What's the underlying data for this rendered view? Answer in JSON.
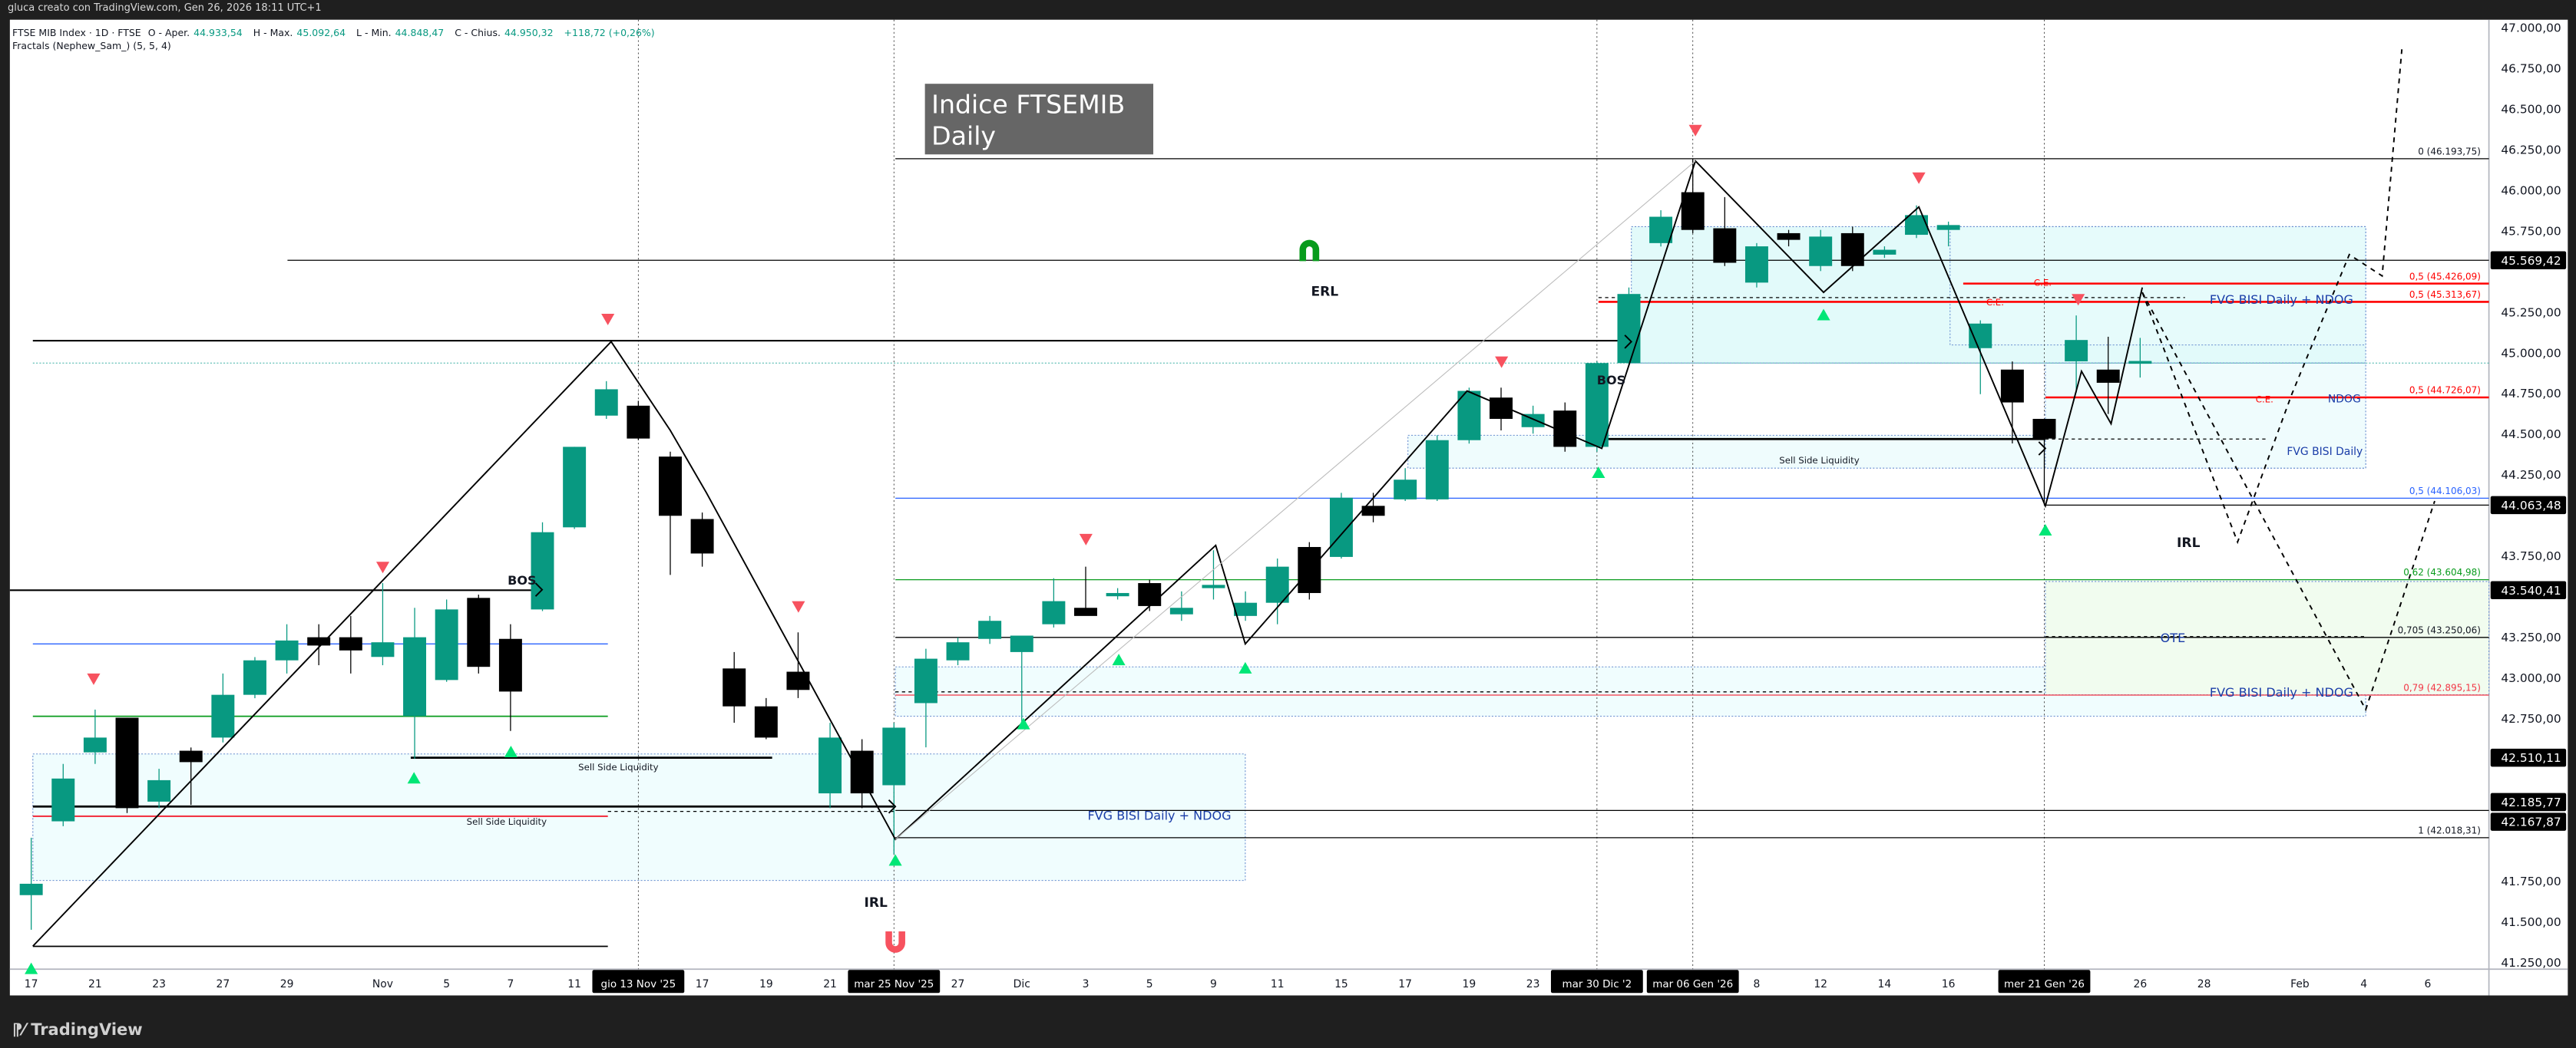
{
  "credit": "gluca creato con TradingView.com, Gen 26, 2026 18:11 UTC+1",
  "legend": {
    "symbol": "FTSE MIB Index · 1D · FTSE",
    "open_label": "O - Aper.",
    "open": "44.933,54",
    "high_label": "H - Max.",
    "high": "45.092,64",
    "low_label": "L - Min.",
    "low": "44.848,47",
    "close_label": "C - Chius.",
    "close": "44.950,32",
    "change": "+118,72 (+0,26%)",
    "indicator": "Fractals (Nephew_Sam_) (5, 5, 4)"
  },
  "title_box": {
    "line1": "Indice FTSEMIB",
    "line2": "Daily"
  },
  "annotations": {
    "erl": "ERL",
    "irl": "IRL",
    "bos": "BOS",
    "sell_side_liquidity": "Sell Side Liquidity",
    "fvg_bisi_ndog": "FVG BISI Daily + NDOG",
    "fvg_bisi": "FVG BISI Daily",
    "ndog": "NDOG",
    "ce": "C.E.",
    "ote": "OTE"
  },
  "fib_levels": [
    {
      "label": "0 (46.193,75)",
      "value": 46193.75
    },
    {
      "label": "0,5 (45.426,09)",
      "value": 45426.09
    },
    {
      "label": "0,5 (45.313,67)",
      "value": 45313.67
    },
    {
      "label": "0,5 (44.726,07)",
      "value": 44726.07
    },
    {
      "label": "0,5 (44.106,03)",
      "value": 44106.03
    },
    {
      "label": "0,62 (43.604,98)",
      "value": 43604.98
    },
    {
      "label": "0,705 (43.250,06)",
      "value": 43250.06
    },
    {
      "label": "0,79 (42.895,15)",
      "value": 42895.15
    },
    {
      "label": "1 (42.018,31)",
      "value": 42018.31
    }
  ],
  "price_markers": [
    {
      "label": "45.569,42",
      "value": 45569.42
    },
    {
      "label": "44.063,48",
      "value": 44063.48
    },
    {
      "label": "43.540,41",
      "value": 43540.41
    },
    {
      "label": "42.510,11",
      "value": 42510.11
    },
    {
      "label": "42.185,77",
      "value": 42185.77
    },
    {
      "label": "42.167,87",
      "value": 42167.87
    }
  ],
  "time_markers": [
    {
      "label": "gio 13 Nov '25",
      "bar": 19
    },
    {
      "label": "mar 25 Nov '25",
      "bar": 27
    },
    {
      "label": "mar 30 Dic '2",
      "bar": 49
    },
    {
      "label": "mar 06 Gen '26",
      "bar": 52
    },
    {
      "label": "mer 21 Gen '26",
      "bar": 63
    }
  ],
  "colors": {
    "up": "#089981",
    "down": "#000000",
    "fractal_up": "#00e676",
    "fractal_down": "#f7525f",
    "ce": "#ff0000",
    "fvg_text": "#1a3da8",
    "fib_blue": "#2962ff",
    "fib_green": "#089b1c",
    "fib_red": "#f23645"
  },
  "brand": "TradingView",
  "chart_data": {
    "type": "candlestick",
    "title": "Indice FTSEMIB Daily",
    "symbol": "FTSE MIB Index",
    "timeframe": "1D",
    "ylim": [
      41150,
      47100
    ],
    "price_ticks": [
      {
        "value": 47000,
        "label": "47.000,00"
      },
      {
        "value": 46750,
        "label": "46.750,00"
      },
      {
        "value": 46500,
        "label": "46.500,00"
      },
      {
        "value": 46250,
        "label": "46.250,00"
      },
      {
        "value": 46000,
        "label": "46.000,00"
      },
      {
        "value": 45750,
        "label": "45.750,00"
      },
      {
        "value": 45250,
        "label": "45.250,00"
      },
      {
        "value": 45000,
        "label": "45.000,00"
      },
      {
        "value": 44750,
        "label": "44.750,00"
      },
      {
        "value": 44500,
        "label": "44.500,00"
      },
      {
        "value": 44250,
        "label": "44.250,00"
      },
      {
        "value": 43750,
        "label": "43.750,00"
      },
      {
        "value": 43250,
        "label": "43.250,00"
      },
      {
        "value": 43000,
        "label": "43.000,00"
      },
      {
        "value": 42750,
        "label": "42.750,00"
      },
      {
        "value": 41750,
        "label": "41.750,00"
      },
      {
        "value": 41500,
        "label": "41.500,00"
      },
      {
        "value": 41250,
        "label": "41.250,00"
      }
    ],
    "time_ticks": [
      {
        "bar": 0,
        "label": "17"
      },
      {
        "bar": 2,
        "label": "21"
      },
      {
        "bar": 4,
        "label": "23"
      },
      {
        "bar": 6,
        "label": "27"
      },
      {
        "bar": 8,
        "label": "29"
      },
      {
        "bar": 11,
        "label": "Nov"
      },
      {
        "bar": 13,
        "label": "5"
      },
      {
        "bar": 15,
        "label": "7"
      },
      {
        "bar": 17,
        "label": "11"
      },
      {
        "bar": 21,
        "label": "17"
      },
      {
        "bar": 23,
        "label": "19"
      },
      {
        "bar": 25,
        "label": "21"
      },
      {
        "bar": 29,
        "label": "27"
      },
      {
        "bar": 31,
        "label": "Dic"
      },
      {
        "bar": 33,
        "label": "3"
      },
      {
        "bar": 35,
        "label": "5"
      },
      {
        "bar": 37,
        "label": "9"
      },
      {
        "bar": 39,
        "label": "11"
      },
      {
        "bar": 41,
        "label": "15"
      },
      {
        "bar": 43,
        "label": "17"
      },
      {
        "bar": 45,
        "label": "19"
      },
      {
        "bar": 47,
        "label": "23"
      },
      {
        "bar": 54,
        "label": "8"
      },
      {
        "bar": 56,
        "label": "12"
      },
      {
        "bar": 58,
        "label": "14"
      },
      {
        "bar": 60,
        "label": "16"
      },
      {
        "bar": 66,
        "label": "26"
      },
      {
        "bar": 68,
        "label": "28"
      },
      {
        "bar": 71,
        "label": "Feb"
      },
      {
        "bar": 73,
        "label": "4"
      },
      {
        "bar": 75,
        "label": "6"
      }
    ],
    "candles": [
      [
        41665,
        42018,
        41452,
        41735
      ],
      [
        42119,
        42472,
        42089,
        42382
      ],
      [
        42543,
        42806,
        42472,
        42634
      ],
      [
        42756,
        42756,
        42170,
        42200
      ],
      [
        42240,
        42442,
        42200,
        42372
      ],
      [
        42553,
        42573,
        42220,
        42483
      ],
      [
        42634,
        43028,
        42604,
        42897
      ],
      [
        42897,
        43129,
        42876,
        43109
      ],
      [
        43109,
        43331,
        43028,
        43231
      ],
      [
        43251,
        43331,
        43079,
        43200
      ],
      [
        43251,
        43382,
        43028,
        43170
      ],
      [
        43130,
        43584,
        43079,
        43220
      ],
      [
        42766,
        43432,
        42503,
        43251
      ],
      [
        42988,
        43483,
        42977,
        43422
      ],
      [
        43493,
        43513,
        43028,
        43069
      ],
      [
        43241,
        43331,
        42675,
        42917
      ],
      [
        43422,
        43958,
        43412,
        43897
      ],
      [
        43927,
        44422,
        43917,
        44422
      ],
      [
        44614,
        44826,
        44594,
        44776
      ],
      [
        44675,
        44705,
        44463,
        44473
      ],
      [
        44362,
        44392,
        43634,
        43998
      ],
      [
        43978,
        44018,
        43685,
        43766
      ],
      [
        43059,
        43160,
        42725,
        42826
      ],
      [
        42826,
        42877,
        42624,
        42634
      ],
      [
        43039,
        43281,
        42877,
        42927
      ],
      [
        42291,
        42725,
        42200,
        42634
      ],
      [
        42553,
        42624,
        42200,
        42291
      ],
      [
        42341,
        42725,
        41917,
        42695
      ],
      [
        42846,
        43180,
        42574,
        43119
      ],
      [
        43109,
        43250,
        43079,
        43220
      ],
      [
        43241,
        43382,
        43210,
        43352
      ],
      [
        43160,
        43261,
        42725,
        43261
      ],
      [
        43331,
        43614,
        43311,
        43473
      ],
      [
        43432,
        43685,
        43392,
        43382
      ],
      [
        43503,
        43553,
        43483,
        43523
      ],
      [
        43584,
        43604,
        43412,
        43443
      ],
      [
        43392,
        43533,
        43352,
        43432
      ],
      [
        43553,
        43786,
        43483,
        43573
      ],
      [
        43382,
        43533,
        43352,
        43463
      ],
      [
        43463,
        43735,
        43331,
        43685
      ],
      [
        43806,
        43836,
        43483,
        43523
      ],
      [
        43745,
        44139,
        43735,
        44109
      ],
      [
        44059,
        44139,
        43958,
        43998
      ],
      [
        44099,
        44291,
        44089,
        44220
      ],
      [
        44099,
        44493,
        44089,
        44463
      ],
      [
        44463,
        44786,
        44442,
        44766
      ],
      [
        44725,
        44786,
        44523,
        44594
      ],
      [
        44543,
        44675,
        44503,
        44624
      ],
      [
        44645,
        44695,
        44392,
        44422
      ],
      [
        44422,
        44947,
        44392,
        44937
      ],
      [
        44937,
        45402,
        44927,
        45362
      ],
      [
        45675,
        45877,
        45654,
        45837
      ],
      [
        45988,
        46194,
        45736,
        45756
      ],
      [
        45766,
        45958,
        45534,
        45554
      ],
      [
        45432,
        45675,
        45402,
        45655
      ],
      [
        45736,
        45756,
        45655,
        45695
      ],
      [
        45534,
        45756,
        45503,
        45715
      ],
      [
        45736,
        45776,
        45503,
        45534
      ],
      [
        45604,
        45655,
        45584,
        45634
      ],
      [
        45726,
        45907,
        45706,
        45847
      ],
      [
        45756,
        45807,
        45655,
        45786
      ],
      [
        45029,
        45200,
        44746,
        45180
      ],
      [
        44897,
        44947,
        44443,
        44695
      ],
      [
        44594,
        44594,
        44063,
        44473
      ],
      [
        44948,
        45230,
        44756,
        45079
      ],
      [
        44897,
        45099,
        44624,
        44816
      ],
      [
        44933,
        45092,
        44848,
        44950
      ]
    ]
  }
}
